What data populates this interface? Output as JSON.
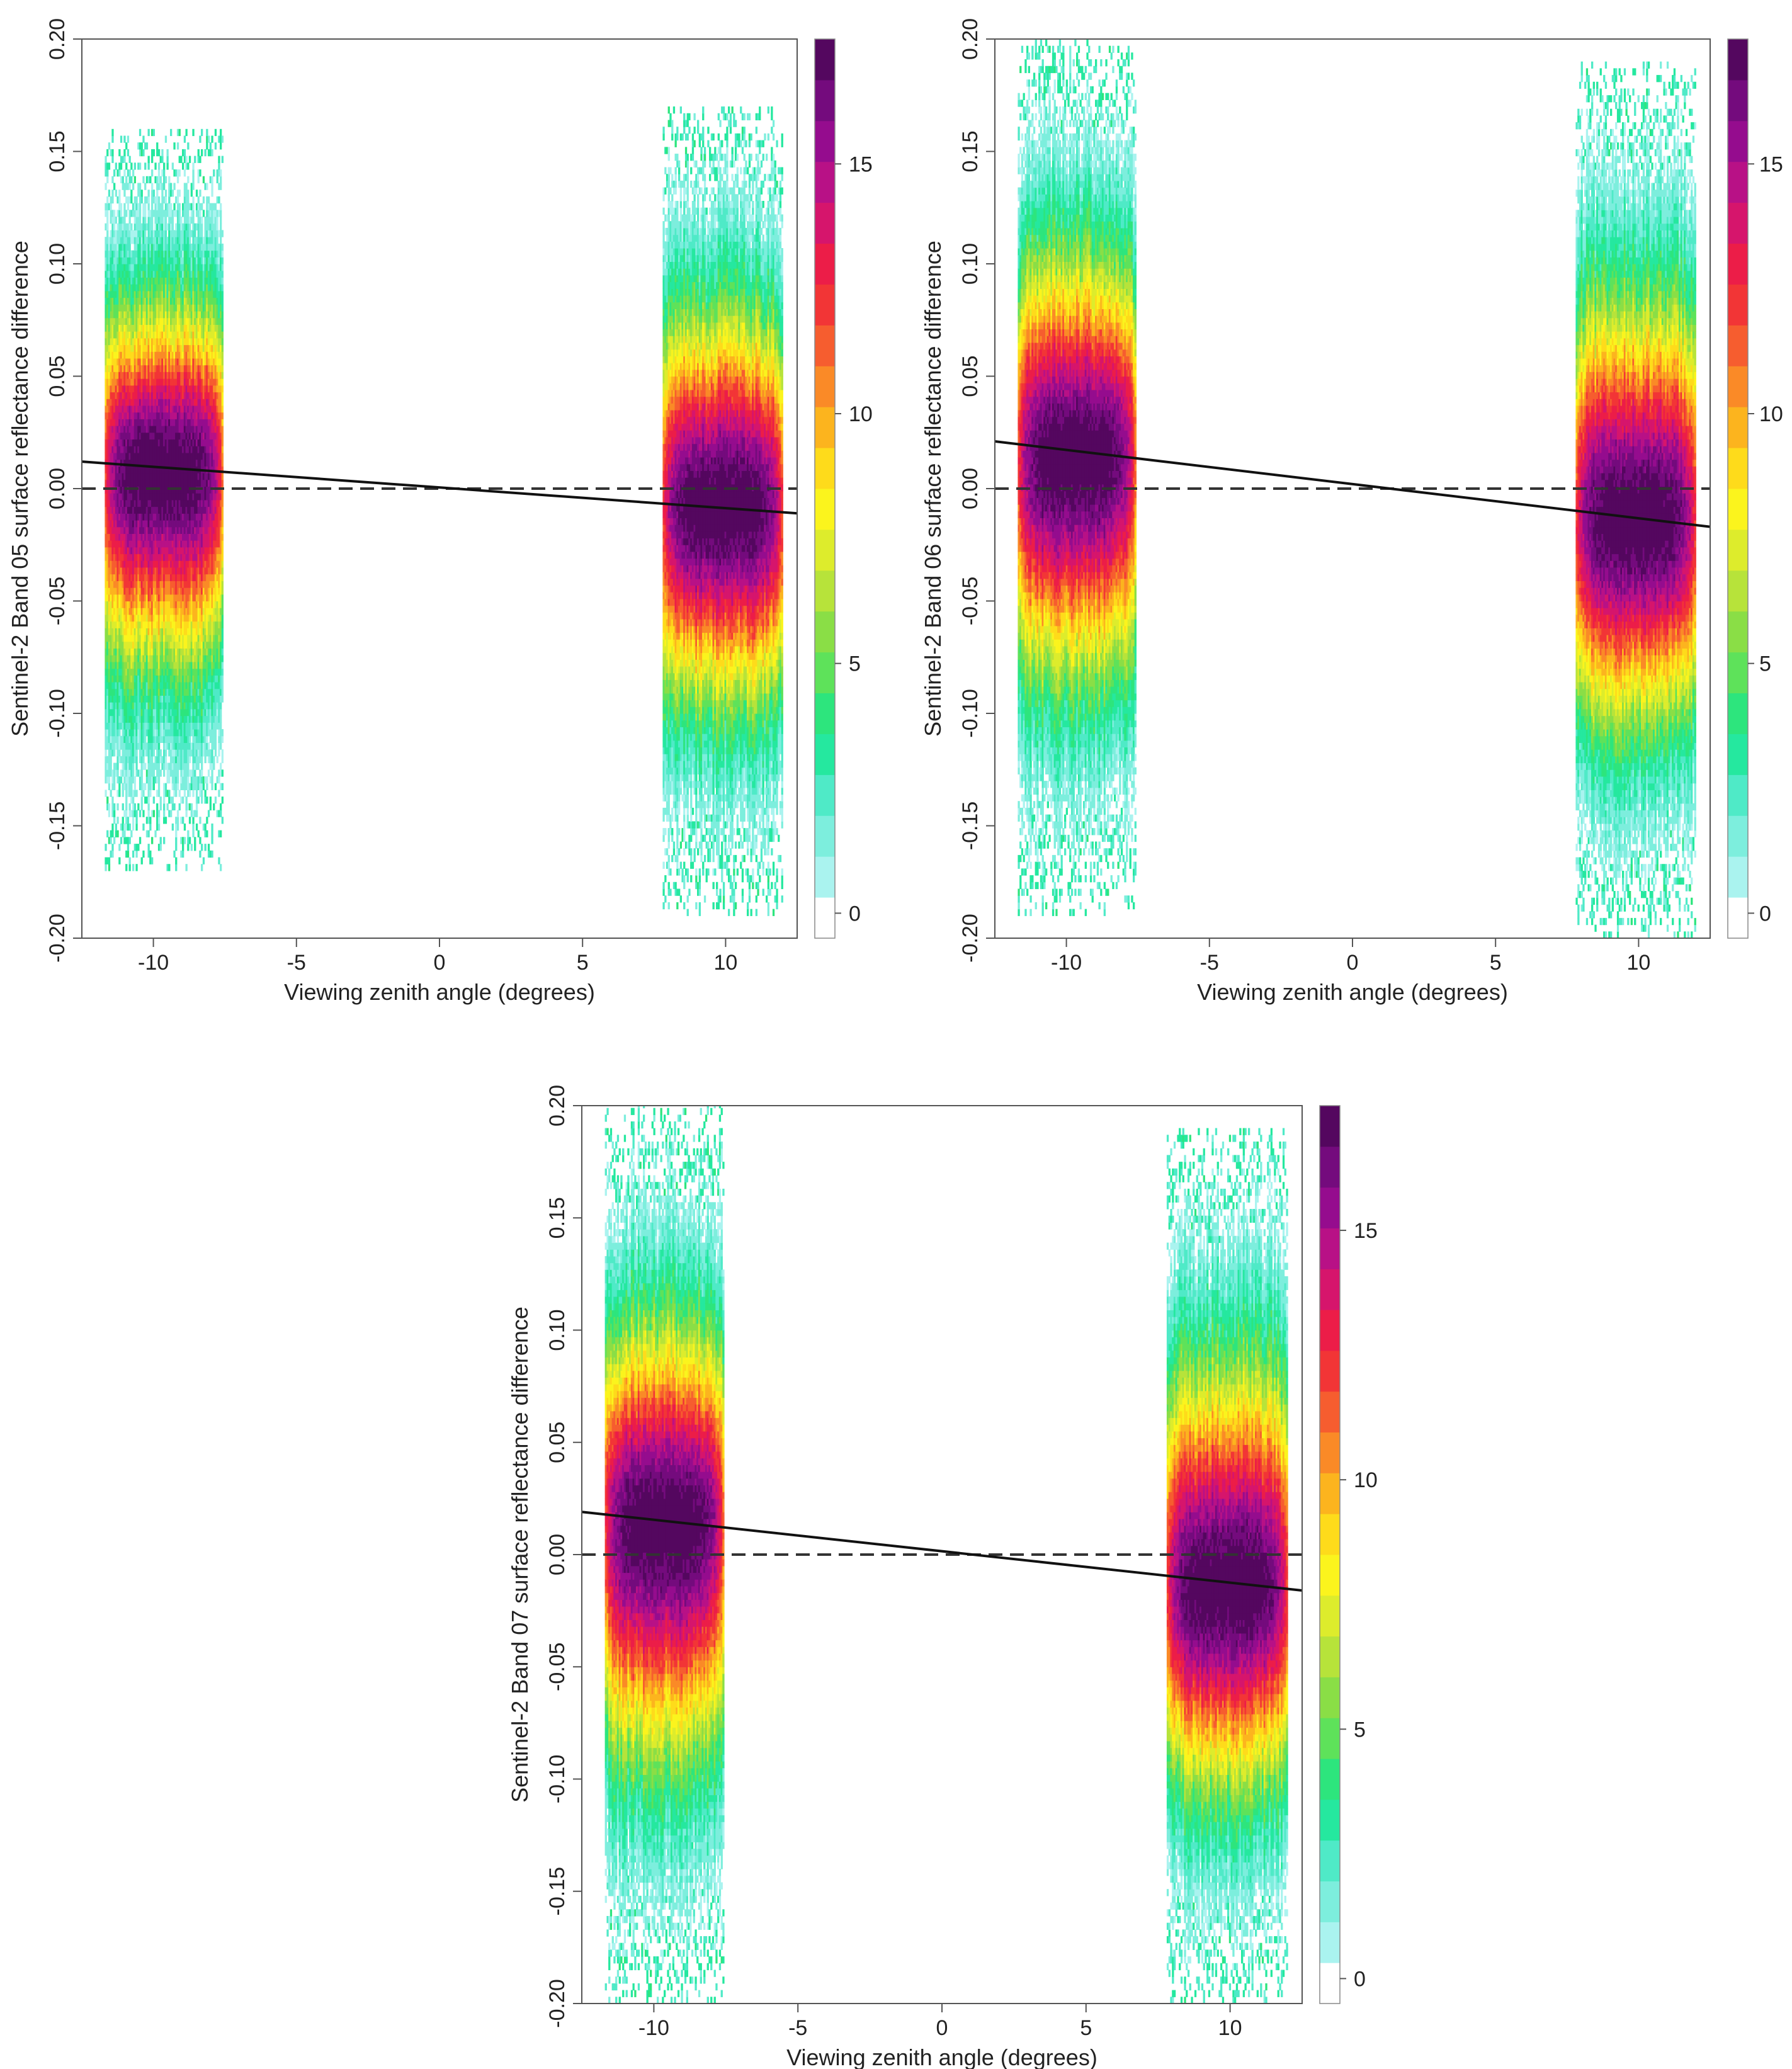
{
  "chart_data": [
    {
      "type": "heatmap",
      "title": "",
      "xlabel": "Viewing zenith angle (degrees)",
      "ylabel": "Sentinel-2 Band 05 surface reflectance difference",
      "xlim": [
        -12.5,
        12.5
      ],
      "ylim": [
        -0.2,
        0.2
      ],
      "x_ticks": [
        -10,
        -5,
        0,
        5,
        10
      ],
      "x_tick_labels": [
        "-10",
        "-5",
        "0",
        "5",
        "10"
      ],
      "y_ticks": [
        -0.2,
        -0.15,
        -0.1,
        -0.05,
        0.0,
        0.05,
        0.1,
        0.15,
        0.2
      ],
      "y_tick_labels": [
        "-0.20",
        "-0.15",
        "-0.10",
        "-0.05",
        "0.00",
        "0.05",
        "0.10",
        "0.15",
        "0.20"
      ],
      "density_clusters": [
        {
          "name": "negative VZA swath",
          "x_range": [
            -11.7,
            -7.6
          ],
          "peak_y": 0.008,
          "y_extent": [
            -0.17,
            0.16
          ]
        },
        {
          "name": "positive VZA swath",
          "x_range": [
            7.8,
            12.0
          ],
          "peak_y": -0.008,
          "y_extent": [
            -0.19,
            0.17
          ]
        }
      ],
      "regression_line": {
        "x": [
          -12.5,
          12.5
        ],
        "y": [
          0.012,
          -0.011
        ]
      },
      "reference_line_y": 0.0,
      "colorbar": {
        "range": [
          -0.5,
          17.5
        ],
        "ticks": [
          0,
          5,
          10,
          15
        ],
        "tick_labels": [
          "0",
          "5",
          "10",
          "15"
        ],
        "colors": [
          "#ffffff",
          "#aaf3ef",
          "#7deedd",
          "#4feac7",
          "#25e89f",
          "#2de57d",
          "#5ee25a",
          "#8ade46",
          "#b7e33a",
          "#ddec2c",
          "#fbf41d",
          "#fedb1b",
          "#fcb41e",
          "#fa8a27",
          "#f65d2f",
          "#f23536",
          "#ec1d48",
          "#d6156c",
          "#b81186",
          "#950c8e",
          "#740b7d",
          "#54075f"
        ]
      }
    },
    {
      "type": "heatmap",
      "title": "",
      "xlabel": "Viewing zenith angle (degrees)",
      "ylabel": "Sentinel-2 Band 06 surface reflectance difference",
      "xlim": [
        -12.5,
        12.5
      ],
      "ylim": [
        -0.2,
        0.2
      ],
      "x_ticks": [
        -10,
        -5,
        0,
        5,
        10
      ],
      "x_tick_labels": [
        "-10",
        "-5",
        "0",
        "5",
        "10"
      ],
      "y_ticks": [
        -0.2,
        -0.15,
        -0.1,
        -0.05,
        0.0,
        0.05,
        0.1,
        0.15,
        0.2
      ],
      "y_tick_labels": [
        "-0.20",
        "-0.15",
        "-0.10",
        "-0.05",
        "0.00",
        "0.05",
        "0.10",
        "0.15",
        "0.20"
      ],
      "density_clusters": [
        {
          "name": "negative VZA swath",
          "x_range": [
            -11.7,
            -7.6
          ],
          "peak_y": 0.014,
          "y_extent": [
            -0.19,
            0.2
          ]
        },
        {
          "name": "positive VZA swath",
          "x_range": [
            7.8,
            12.0
          ],
          "peak_y": -0.014,
          "y_extent": [
            -0.2,
            0.19
          ]
        }
      ],
      "regression_line": {
        "x": [
          -12.5,
          12.5
        ],
        "y": [
          0.021,
          -0.017
        ]
      },
      "reference_line_y": 0.0,
      "colorbar": {
        "range": [
          -0.5,
          17.5
        ],
        "ticks": [
          0,
          5,
          10,
          15
        ],
        "tick_labels": [
          "0",
          "5",
          "10",
          "15"
        ],
        "colors": [
          "#ffffff",
          "#aaf3ef",
          "#7deedd",
          "#4feac7",
          "#25e89f",
          "#2de57d",
          "#5ee25a",
          "#8ade46",
          "#b7e33a",
          "#ddec2c",
          "#fbf41d",
          "#fedb1b",
          "#fcb41e",
          "#fa8a27",
          "#f65d2f",
          "#f23536",
          "#ec1d48",
          "#d6156c",
          "#b81186",
          "#950c8e",
          "#740b7d",
          "#54075f"
        ]
      }
    },
    {
      "type": "heatmap",
      "title": "",
      "xlabel": "Viewing zenith angle (degrees)",
      "ylabel": "Sentinel-2 Band 07 surface reflectance difference",
      "xlim": [
        -12.5,
        12.5
      ],
      "ylim": [
        -0.2,
        0.2
      ],
      "x_ticks": [
        -10,
        -5,
        0,
        5,
        10
      ],
      "x_tick_labels": [
        "-10",
        "-5",
        "0",
        "5",
        "10"
      ],
      "y_ticks": [
        -0.2,
        -0.15,
        -0.1,
        -0.05,
        0.0,
        0.05,
        0.1,
        0.15,
        0.2
      ],
      "y_tick_labels": [
        "-0.20",
        "-0.15",
        "-0.10",
        "-0.05",
        "0.00",
        "0.05",
        "0.10",
        "0.15",
        "0.20"
      ],
      "density_clusters": [
        {
          "name": "negative VZA swath",
          "x_range": [
            -11.7,
            -7.6
          ],
          "peak_y": 0.014,
          "y_extent": [
            -0.2,
            0.2
          ]
        },
        {
          "name": "positive VZA swath",
          "x_range": [
            7.8,
            12.0
          ],
          "peak_y": -0.014,
          "y_extent": [
            -0.2,
            0.19
          ]
        }
      ],
      "regression_line": {
        "x": [
          -12.5,
          12.5
        ],
        "y": [
          0.019,
          -0.016
        ]
      },
      "reference_line_y": 0.0,
      "colorbar": {
        "range": [
          -0.5,
          17.5
        ],
        "ticks": [
          0,
          5,
          10,
          15
        ],
        "tick_labels": [
          "0",
          "5",
          "10",
          "15"
        ],
        "colors": [
          "#ffffff",
          "#aaf3ef",
          "#7deedd",
          "#4feac7",
          "#25e89f",
          "#2de57d",
          "#5ee25a",
          "#8ade46",
          "#b7e33a",
          "#ddec2c",
          "#fbf41d",
          "#fedb1b",
          "#fcb41e",
          "#fa8a27",
          "#f65d2f",
          "#f23536",
          "#ec1d48",
          "#d6156c",
          "#b81186",
          "#950c8e",
          "#740b7d",
          "#54075f"
        ]
      }
    }
  ]
}
